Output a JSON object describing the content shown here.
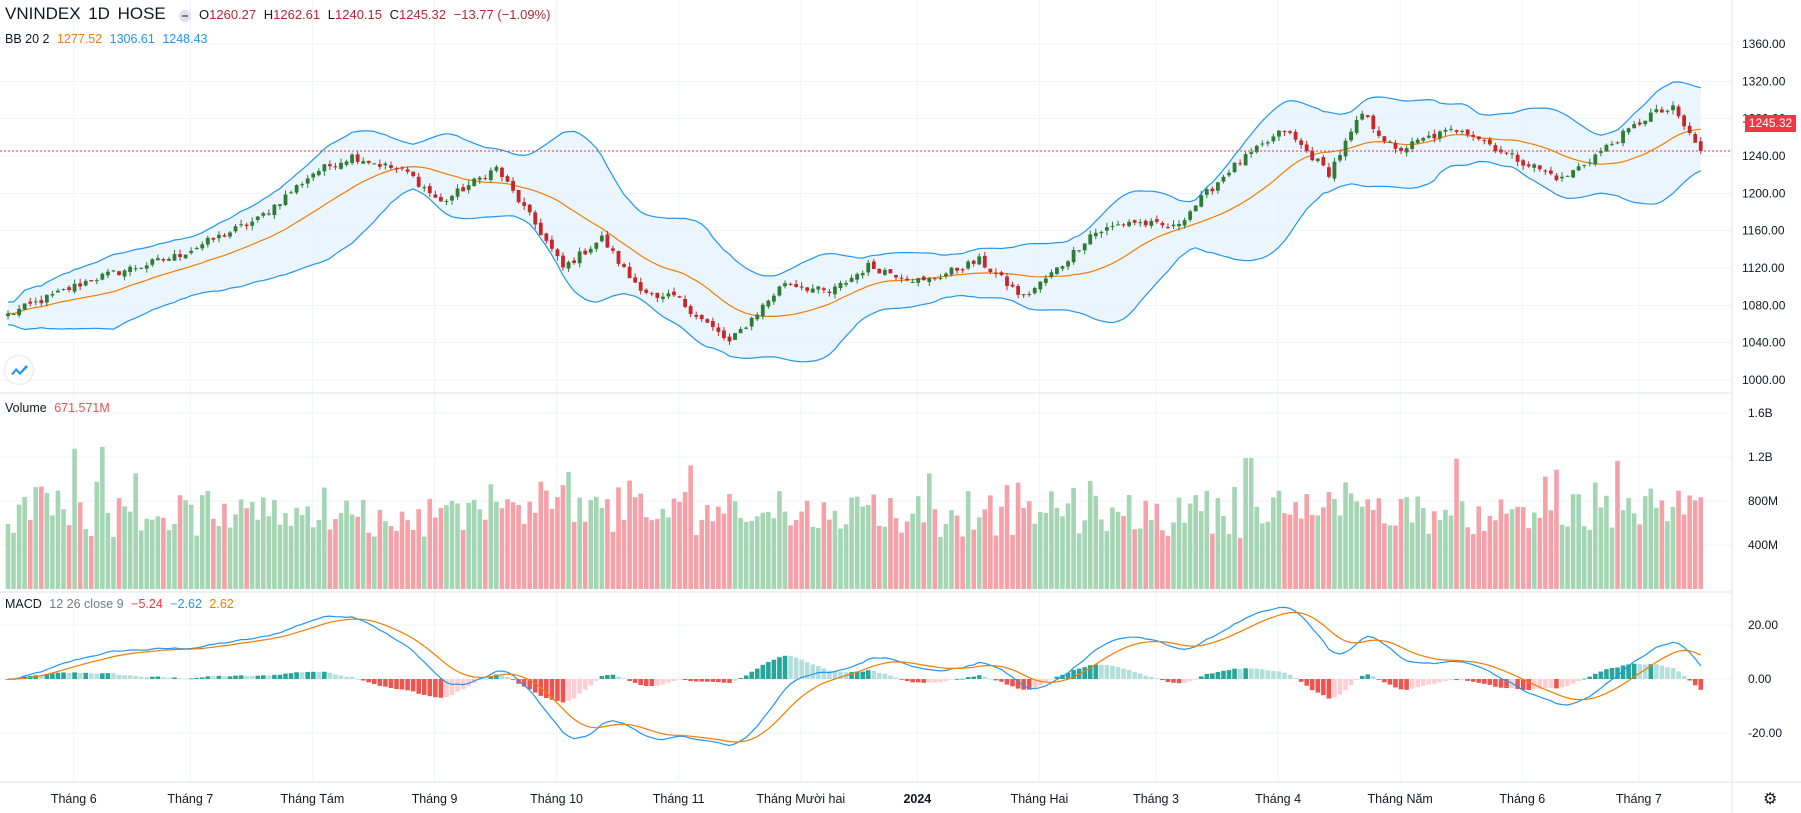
{
  "header": {
    "symbol": "VNINDEX",
    "interval": "1D",
    "exchange": "HOSE",
    "o_key": "O",
    "o_val": "1260.27",
    "h_key": "H",
    "h_val": "1262.61",
    "l_key": "L",
    "l_val": "1240.15",
    "c_key": "C",
    "c_val": "1245.32",
    "change": "−13.77 (−1.09%)"
  },
  "bb_legend": {
    "name": "BB 20 2",
    "basis": "1277.52",
    "upper": "1306.61",
    "lower": "1248.43"
  },
  "volume_legend": {
    "name": "Volume",
    "value": "671.571M"
  },
  "macd_legend": {
    "name": "MACD",
    "params": "12 26 close 9",
    "hist": "−5.24",
    "macd": "−2.62",
    "signal": "2.62"
  },
  "last_price_label": "1245.32",
  "icons": {
    "settings": "gear-icon",
    "logo": "tradingview-logo-icon",
    "toggle": "collapse-icon"
  },
  "colors": {
    "up": "#26a69a",
    "down": "#ef5350",
    "candle_up": "#2e7d32",
    "candle_down": "#c62828",
    "bb_band": "#2196f3",
    "bb_basis": "#f57c00",
    "bb_fill": "#e3f2fd",
    "macd_line": "#2196f3",
    "signal_line": "#f57c00",
    "vol_up": "#a5d6b3",
    "vol_down": "#f4a1a8",
    "last_price": "#f23645"
  },
  "chart_data": [
    {
      "type": "candlestick",
      "title": "VNINDEX 1D HOSE",
      "ylim": [
        990,
        1365
      ],
      "y_ticks": [
        "1360.00",
        "1320.00",
        "1280.00",
        "1240.00",
        "1200.00",
        "1160.00",
        "1120.00",
        "1080.00",
        "1040.00",
        "1000.00"
      ],
      "x_labels": [
        "Tháng 6",
        "Tháng 7",
        "Tháng Tám",
        "Tháng 9",
        "Tháng 10",
        "Tháng 11",
        "Tháng Mười hai",
        "2024",
        "Tháng Hai",
        "Tháng 3",
        "Tháng 4",
        "Tháng Năm",
        "Tháng 6",
        "Tháng 7"
      ],
      "close_anchors": {
        "x_index": [
          0,
          15,
          30,
          45,
          55,
          62,
          72,
          78,
          88,
          96,
          100,
          107,
          112,
          117,
          120,
          130,
          140,
          148,
          155,
          165,
          175,
          183,
          190,
          195,
          198,
          202,
          210,
          220,
          230,
          238,
          244,
          250,
          256,
          262,
          270,
          280,
          290,
          296,
          300,
          305
        ],
        "close": [
          1070,
          1108,
          1132,
          1172,
          1222,
          1240,
          1222,
          1190,
          1227,
          1158,
          1120,
          1152,
          1110,
          1085,
          1090,
          1040,
          1105,
          1093,
          1122,
          1105,
          1128,
          1088,
          1124,
          1156,
          1162,
          1170,
          1163,
          1225,
          1268,
          1222,
          1285,
          1245,
          1260,
          1270,
          1242,
          1215,
          1258,
          1285,
          1290,
          1245
        ]
      },
      "last_close": 1245.32,
      "bb": {
        "length": 20,
        "mult": 2,
        "basis": 1277.52,
        "upper": 1306.61,
        "lower": 1248.43
      }
    },
    {
      "type": "bar",
      "title": "Volume",
      "y_ticks": [
        "1.6B",
        "1.2B",
        "800M",
        "400M"
      ],
      "ylim": [
        0,
        1.7
      ],
      "unit": "B",
      "last_value": "671.571M"
    },
    {
      "type": "line",
      "title": "MACD 12 26 close 9",
      "y_ticks": [
        "20.00",
        "0.00",
        "-20.00"
      ],
      "ylim": [
        -35,
        30
      ],
      "series": [
        {
          "name": "MACD",
          "last": -2.62
        },
        {
          "name": "Signal",
          "last": 2.62
        },
        {
          "name": "Histogram",
          "last": -5.24
        }
      ]
    }
  ]
}
